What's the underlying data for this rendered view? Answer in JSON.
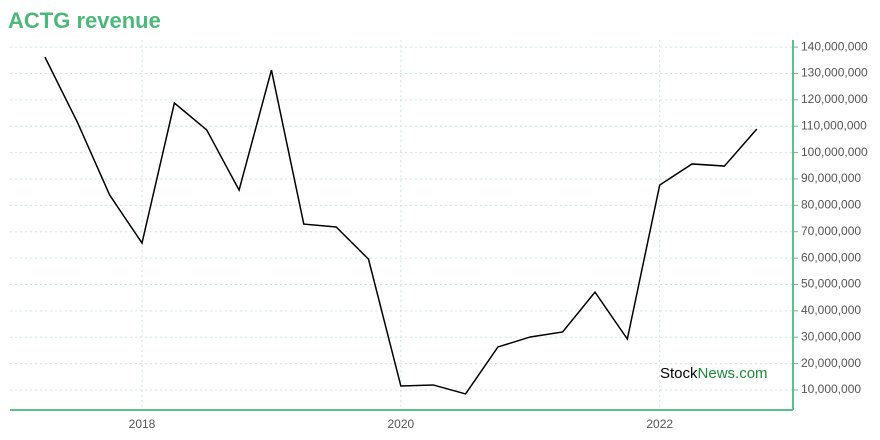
{
  "chart_data": {
    "type": "line",
    "title": "ACTG revenue",
    "watermark": [
      "Stock",
      "News.com"
    ],
    "x": [
      2017.25,
      2017.5,
      2017.75,
      2018,
      2018.25,
      2018.5,
      2018.75,
      2019,
      2019.25,
      2019.5,
      2019.75,
      2020,
      2020.25,
      2020.5,
      2020.75,
      2021,
      2021.25,
      2021.5,
      2021.75,
      2022,
      2022.25,
      2022.5,
      2022.75
    ],
    "series": [
      {
        "name": "revenue",
        "color": "#000000",
        "values": [
          136200000,
          111600000,
          83900000,
          65700000,
          118800000,
          108600000,
          85800000,
          131300000,
          72900000,
          71800000,
          59600000,
          11500000,
          11900000,
          8500000,
          26300000,
          30100000,
          32000000,
          47100000,
          29300000,
          87700000,
          95700000,
          94900000,
          108900000
        ]
      }
    ],
    "xlim": [
      2016.98,
      2023.03
    ],
    "xticks": [
      2018,
      2020,
      2022
    ],
    "ylim": [
      2400000,
      142700000
    ],
    "yticks": [
      {
        "value": 10000000,
        "label": "10,000,000"
      },
      {
        "value": 20000000,
        "label": "20,000,000"
      },
      {
        "value": 30000000,
        "label": "30,000,000"
      },
      {
        "value": 40000000,
        "label": "40,000,000"
      },
      {
        "value": 50000000,
        "label": "50,000,000"
      },
      {
        "value": 60000000,
        "label": "60,000,000"
      },
      {
        "value": 70000000,
        "label": "70,000,000"
      },
      {
        "value": 80000000,
        "label": "80,000,000"
      },
      {
        "value": 90000000,
        "label": "90,000,000"
      },
      {
        "value": 100000000,
        "label": "100,000,000"
      },
      {
        "value": 110000000,
        "label": "110,000,000"
      },
      {
        "value": 120000000,
        "label": "120,000,000"
      },
      {
        "value": 130000000,
        "label": "130,000,000"
      },
      {
        "value": 140000000,
        "label": "140,000,000"
      }
    ],
    "grid": true,
    "axis_color": "#5cc08a"
  }
}
